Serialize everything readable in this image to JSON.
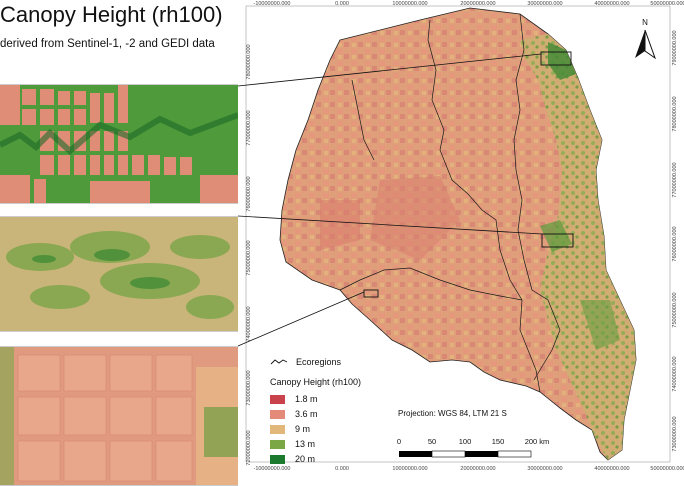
{
  "title": "Canopy Height (rh100)",
  "subtitle": "derived from Sentinel-1, -2 and GEDI data",
  "legend": {
    "ecoregions_label": "Ecoregions",
    "canopy_title": "Canopy Height (rh100)",
    "classes": [
      {
        "label": "1.8 m",
        "color": "#c9414a"
      },
      {
        "label": "3.6 m",
        "color": "#e48a78"
      },
      {
        "label": "9 m",
        "color": "#e2b87a"
      },
      {
        "label": "13 m",
        "color": "#7ba845"
      },
      {
        "label": "20 m",
        "color": "#1c7a2e"
      }
    ]
  },
  "projection": "Projection: WGS 84, LTM 21 S",
  "scale_bar": {
    "labels": [
      "0",
      "50",
      "100",
      "150",
      "200 km"
    ]
  },
  "north_arrow": {
    "label": "N"
  },
  "grid": {
    "top_ticks": [
      "-10000000.000",
      "0.000",
      "10000000.000",
      "20000000.000",
      "30000000.000",
      "40000000.000",
      "50000000.000"
    ],
    "bottom_ticks": [
      "-10000000.000",
      "0.000",
      "10000000.000",
      "20000000.000",
      "30000000.000",
      "40000000.000",
      "50000000.000"
    ],
    "left_ticks": [
      "78000000.000",
      "77000000.000",
      "76000000.000",
      "75000000.000",
      "74000000.000",
      "73000000.000",
      "72000000.000"
    ],
    "right_ticks": [
      "79000000.000",
      "78000000.000",
      "77000000.000",
      "76000000.000",
      "75000000.000",
      "74000000.000",
      "73000000.000"
    ]
  }
}
